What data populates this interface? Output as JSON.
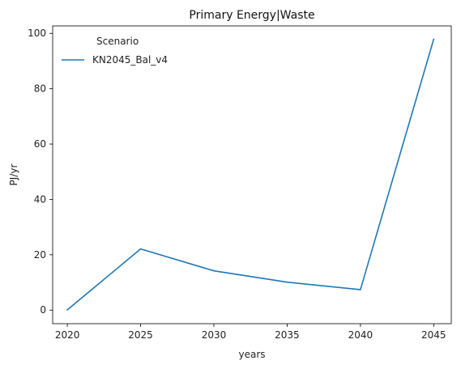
{
  "chart_data": {
    "type": "line",
    "title": "Primary Energy|Waste",
    "xlabel": "years",
    "ylabel": "PJ/yr",
    "x": [
      2020,
      2025,
      2030,
      2035,
      2040,
      2045
    ],
    "xticks": [
      "2020",
      "2025",
      "2030",
      "2035",
      "2040",
      "2045"
    ],
    "yticks": [
      "0",
      "20",
      "40",
      "60",
      "80",
      "100"
    ],
    "xlim": [
      2019.0,
      2046.2
    ],
    "ylim": [
      -4.9,
      102.7
    ],
    "grid": false,
    "legend": {
      "title": "Scenario",
      "placement": "top-left"
    },
    "series": [
      {
        "name": "KN2045_Bal_v4",
        "color": "#1f77b4",
        "values": [
          0.1,
          22.1,
          14.2,
          10.1,
          7.4,
          97.9
        ]
      }
    ]
  }
}
